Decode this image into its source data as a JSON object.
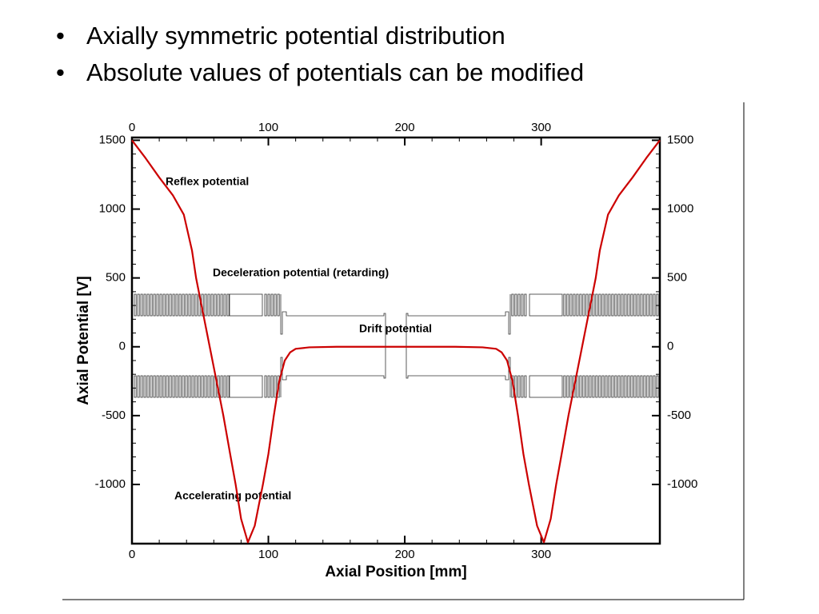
{
  "bullets": [
    "Axially symmetric potential distribution",
    "Absolute values of potentials can be modified"
  ],
  "chart_data": {
    "type": "line",
    "x_label": "Axial Position [mm]",
    "y_label": "Axial Potential [V]",
    "annotations": [
      "Reflex potential",
      "Deceleration potential (retarding)",
      "Drift potential",
      "Accelerating potential"
    ],
    "xlim": [
      0,
      387
    ],
    "ylim": [
      -1430,
      1520
    ],
    "xticks": [
      0,
      100,
      200,
      300
    ],
    "yticks": [
      -1000,
      -500,
      0,
      500,
      1000,
      1500
    ],
    "series": [
      {
        "color": "#cc0000",
        "x": [
          0,
          10,
          20,
          30,
          38,
          44,
          47,
          52,
          57,
          62,
          67,
          72,
          76,
          80,
          85,
          90,
          96,
          100,
          104,
          108,
          112,
          116,
          120,
          130,
          150,
          193,
          237,
          257,
          267,
          271,
          275,
          279,
          283,
          287,
          291,
          297,
          302,
          307,
          311,
          315,
          320,
          325,
          330,
          335,
          340,
          343,
          349,
          357,
          367,
          377,
          387
        ],
        "values": [
          1500,
          1370,
          1230,
          1100,
          960,
          700,
          500,
          250,
          0,
          -250,
          -500,
          -780,
          -1000,
          -1250,
          -1420,
          -1300,
          -1000,
          -780,
          -500,
          -250,
          -100,
          -40,
          -15,
          -4,
          0,
          0,
          0,
          -4,
          -15,
          -40,
          -100,
          -250,
          -500,
          -780,
          -1000,
          -1300,
          -1420,
          -1250,
          -1000,
          -780,
          -500,
          -250,
          0,
          250,
          500,
          700,
          960,
          1100,
          1230,
          1370,
          1500
        ]
      }
    ]
  }
}
